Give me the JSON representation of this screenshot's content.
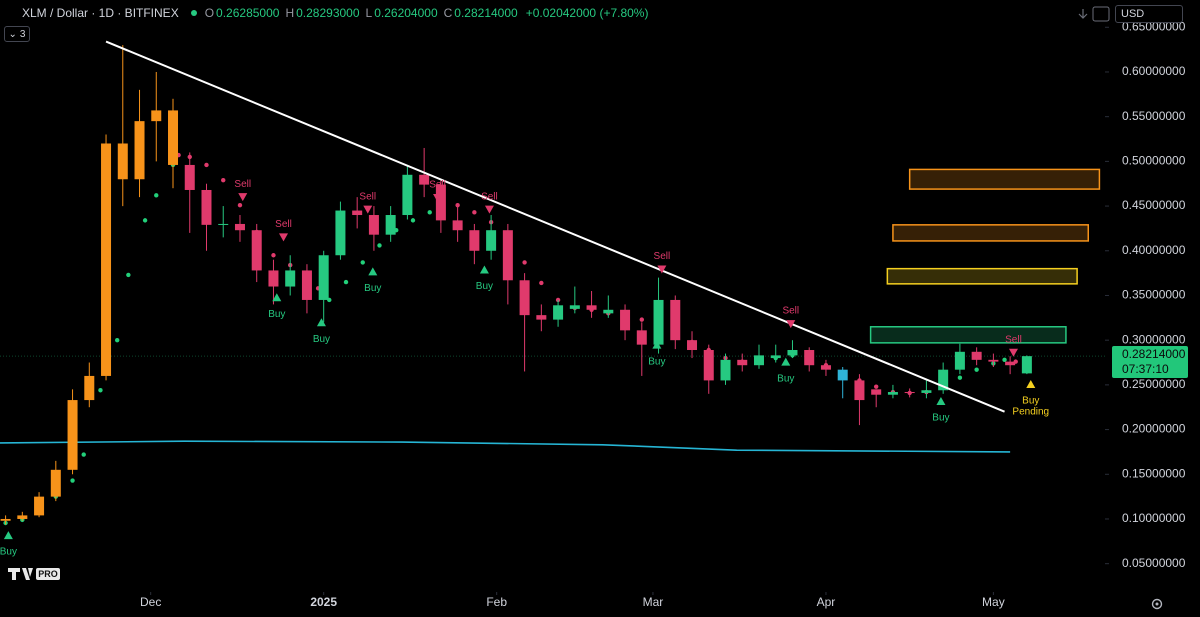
{
  "chart_data": {
    "type": "candlestick",
    "title": "XLM / Dollar · 1D · BITFINEX",
    "ohlc_header": [
      {
        "label": "O",
        "value": "0.26285000"
      },
      {
        "label": "H",
        "value": "0.28293000"
      },
      {
        "label": "L",
        "value": "0.26204000"
      },
      {
        "label": "C",
        "value": "0.28214000"
      }
    ],
    "change": "+0.02042000 (+7.80%)",
    "indicator_count": "3",
    "currency": "USD",
    "last_price_label": "0.28214000",
    "countdown": "07:37:10",
    "logo": "PRO",
    "x": [
      0,
      3,
      6,
      9,
      12,
      15,
      18,
      21,
      24,
      27,
      30,
      33,
      36,
      39,
      42,
      45,
      48,
      51,
      54,
      57,
      60,
      63,
      66,
      69,
      72,
      75,
      78,
      81,
      84,
      87,
      90,
      93,
      96,
      99,
      102,
      105,
      108,
      111,
      114,
      117,
      120,
      123,
      126,
      129,
      132,
      135,
      138,
      141,
      144,
      147,
      150,
      153,
      156,
      159,
      162,
      165,
      168,
      171,
      174,
      177,
      180,
      183
    ],
    "open": [
      0.098,
      0.1,
      0.104,
      0.125,
      0.155,
      0.233,
      0.26,
      0.52,
      0.48,
      0.545,
      0.557,
      0.496,
      0.468,
      0.429,
      0.43,
      0.423,
      0.378,
      0.36,
      0.378,
      0.345,
      0.395,
      0.445,
      0.44,
      0.418,
      0.44,
      0.485,
      0.474,
      0.434,
      0.423,
      0.4,
      0.423,
      0.367,
      0.328,
      0.323,
      0.335,
      0.339,
      0.33,
      0.334,
      0.311,
      0.295,
      0.345,
      0.3,
      0.289,
      0.255,
      0.278,
      0.272,
      0.28,
      0.283,
      0.289,
      0.272,
      0.267,
      0.255,
      0.245,
      0.239,
      0.242,
      0.241,
      0.244,
      0.267,
      0.287,
      0.278,
      0.276,
      0.26285
    ],
    "high": [
      0.104,
      0.108,
      0.13,
      0.165,
      0.245,
      0.275,
      0.53,
      0.63,
      0.58,
      0.6,
      0.57,
      0.51,
      0.475,
      0.45,
      0.44,
      0.43,
      0.39,
      0.395,
      0.385,
      0.4,
      0.455,
      0.46,
      0.45,
      0.45,
      0.495,
      0.515,
      0.48,
      0.45,
      0.43,
      0.44,
      0.43,
      0.375,
      0.34,
      0.345,
      0.36,
      0.355,
      0.35,
      0.34,
      0.32,
      0.37,
      0.35,
      0.31,
      0.295,
      0.285,
      0.285,
      0.295,
      0.295,
      0.3,
      0.292,
      0.278,
      0.27,
      0.262,
      0.245,
      0.25,
      0.246,
      0.255,
      0.275,
      0.296,
      0.292,
      0.285,
      0.282,
      0.28293
    ],
    "low": [
      0.094,
      0.098,
      0.102,
      0.12,
      0.15,
      0.225,
      0.255,
      0.45,
      0.46,
      0.5,
      0.47,
      0.42,
      0.4,
      0.415,
      0.41,
      0.365,
      0.34,
      0.35,
      0.33,
      0.32,
      0.39,
      0.425,
      0.4,
      0.41,
      0.435,
      0.46,
      0.42,
      0.41,
      0.385,
      0.39,
      0.34,
      0.265,
      0.31,
      0.315,
      0.33,
      0.325,
      0.325,
      0.3,
      0.26,
      0.285,
      0.29,
      0.28,
      0.24,
      0.25,
      0.265,
      0.268,
      0.275,
      0.28,
      0.265,
      0.26,
      0.235,
      0.205,
      0.225,
      0.235,
      0.236,
      0.235,
      0.24,
      0.262,
      0.272,
      0.27,
      0.262,
      0.26204
    ],
    "close": [
      0.1,
      0.104,
      0.125,
      0.155,
      0.233,
      0.26,
      0.52,
      0.48,
      0.545,
      0.557,
      0.496,
      0.468,
      0.429,
      0.43,
      0.423,
      0.378,
      0.36,
      0.378,
      0.345,
      0.395,
      0.445,
      0.44,
      0.418,
      0.44,
      0.485,
      0.474,
      0.434,
      0.423,
      0.4,
      0.423,
      0.367,
      0.328,
      0.323,
      0.339,
      0.339,
      0.334,
      0.334,
      0.311,
      0.295,
      0.345,
      0.3,
      0.289,
      0.255,
      0.278,
      0.272,
      0.283,
      0.283,
      0.289,
      0.272,
      0.267,
      0.255,
      0.233,
      0.239,
      0.242,
      0.241,
      0.244,
      0.267,
      0.287,
      0.278,
      0.276,
      0.272,
      0.28214
    ],
    "colors": [
      "#f7931a",
      "#f7931a",
      "#f7931a",
      "#f7931a",
      "#f7931a",
      "#f7931a",
      "#f7931a",
      "#f7931a",
      "#f7931a",
      "#f7931a",
      "#f7931a",
      "#e03a6c",
      "#e03a6c",
      "#26c981",
      "#e03a6c",
      "#e03a6c",
      "#e03a6c",
      "#26c981",
      "#e03a6c",
      "#26c981",
      "#26c981",
      "#e03a6c",
      "#e03a6c",
      "#26c981",
      "#26c981",
      "#e03a6c",
      "#e03a6c",
      "#e03a6c",
      "#e03a6c",
      "#26c981",
      "#e03a6c",
      "#e03a6c",
      "#e03a6c",
      "#26c981",
      "#26c981",
      "#e03a6c",
      "#26c981",
      "#e03a6c",
      "#e03a6c",
      "#26c981",
      "#e03a6c",
      "#e03a6c",
      "#e03a6c",
      "#26c981",
      "#e03a6c",
      "#26c981",
      "#26c981",
      "#26c981",
      "#e03a6c",
      "#e03a6c",
      "#2fb4d8",
      "#e03a6c",
      "#e03a6c",
      "#26c981",
      "#e03a6c",
      "#26c981",
      "#26c981",
      "#26c981",
      "#e03a6c",
      "#e03a6c",
      "#e03a6c",
      "#26c981"
    ],
    "xlim": [
      -1,
      197
    ],
    "xticks": [
      {
        "value": 26,
        "label": "Dec"
      },
      {
        "value": 57,
        "label": "2025"
      },
      {
        "value": 88,
        "label": "Feb"
      },
      {
        "value": 116,
        "label": "Mar"
      },
      {
        "value": 147,
        "label": "Apr"
      },
      {
        "value": 177,
        "label": "May"
      }
    ],
    "ylim": [
      0.02,
      0.655
    ],
    "yticks": [
      {
        "value": 0.05,
        "label": "0.05000000"
      },
      {
        "value": 0.1,
        "label": "0.10000000"
      },
      {
        "value": 0.15,
        "label": "0.15000000"
      },
      {
        "value": 0.2,
        "label": "0.20000000"
      },
      {
        "value": 0.25,
        "label": "0.25000000"
      },
      {
        "value": 0.3,
        "label": "0.30000000"
      },
      {
        "value": 0.35,
        "label": "0.35000000"
      },
      {
        "value": 0.4,
        "label": "0.40000000"
      },
      {
        "value": 0.45,
        "label": "0.45000000"
      },
      {
        "value": 0.5,
        "label": "0.50000000"
      },
      {
        "value": 0.55,
        "label": "0.55000000"
      },
      {
        "value": 0.6,
        "label": "0.60000000"
      },
      {
        "value": 0.65,
        "label": "0.65000000"
      }
    ],
    "trendline": {
      "x": [
        18,
        179
      ],
      "values": [
        0.634,
        0.22
      ],
      "color": "#ffffff"
    },
    "moving_average": {
      "x": [
        -1,
        32,
        71,
        107,
        131,
        180
      ],
      "values": [
        0.185,
        0.187,
        0.186,
        0.183,
        0.177,
        0.175
      ],
      "color": "#26b5d4"
    },
    "dots": [
      {
        "color": "#22d07a",
        "x": [
          0,
          3,
          6,
          9,
          12,
          14,
          17,
          20,
          22,
          25,
          27,
          30,
          58,
          61,
          64,
          67,
          70,
          73,
          76,
          138,
          141,
          168,
          171,
          174,
          177,
          179
        ],
        "values": [
          0.0955,
          0.099,
          0.11,
          0.125,
          0.143,
          0.172,
          0.244,
          0.3,
          0.373,
          0.434,
          0.462,
          0.496,
          0.345,
          0.365,
          0.387,
          0.406,
          0.423,
          0.434,
          0.443,
          0.28,
          0.283,
          0.25,
          0.258,
          0.267,
          0.274,
          0.278
        ]
      },
      {
        "color": "#e03a6c",
        "x": [
          31,
          33,
          36,
          39,
          42,
          45,
          48,
          51,
          54,
          56,
          78,
          81,
          84,
          87,
          90,
          93,
          96,
          99,
          102,
          105,
          108,
          111,
          114,
          117,
          120,
          123,
          126,
          129,
          132,
          135,
          144,
          147,
          150,
          153,
          156,
          159,
          162,
          165,
          181,
          183
        ],
        "values": [
          0.507,
          0.505,
          0.496,
          0.479,
          0.451,
          0.421,
          0.395,
          0.384,
          0.37,
          0.358,
          0.457,
          0.451,
          0.443,
          0.432,
          0.412,
          0.387,
          0.364,
          0.345,
          0.336,
          0.334,
          0.33,
          0.327,
          0.323,
          0.315,
          0.308,
          0.298,
          0.289,
          0.28,
          0.276,
          0.276,
          0.28,
          0.272,
          0.264,
          0.255,
          0.248,
          0.242,
          0.241,
          0.242,
          0.276,
          0.276
        ]
      }
    ],
    "signals": [
      {
        "label": "Buy",
        "x": 0.5,
        "value": 0.082,
        "color": "#26c981"
      },
      {
        "label": "Sell",
        "x": 42.5,
        "value": 0.46,
        "color": "#e03a6c"
      },
      {
        "label": "Buy",
        "x": 48.6,
        "value": 0.348,
        "color": "#26c981"
      },
      {
        "label": "Sell",
        "x": 49.8,
        "value": 0.415,
        "color": "#e03a6c"
      },
      {
        "label": "Buy",
        "x": 56.6,
        "value": 0.32,
        "color": "#26c981"
      },
      {
        "label": "Sell",
        "x": 64.9,
        "value": 0.446,
        "color": "#e03a6c"
      },
      {
        "label": "Buy",
        "x": 65.8,
        "value": 0.377,
        "color": "#26c981"
      },
      {
        "label": "Sell",
        "x": 77.4,
        "value": 0.459,
        "color": "#e03a6c"
      },
      {
        "label": "Buy",
        "x": 85.8,
        "value": 0.379,
        "color": "#26c981"
      },
      {
        "label": "Sell",
        "x": 86.7,
        "value": 0.446,
        "color": "#e03a6c"
      },
      {
        "label": "Buy",
        "x": 116.7,
        "value": 0.295,
        "color": "#26c981"
      },
      {
        "label": "Sell",
        "x": 117.6,
        "value": 0.379,
        "color": "#e03a6c"
      },
      {
        "label": "Buy",
        "x": 139.8,
        "value": 0.276,
        "color": "#26c981"
      },
      {
        "label": "Sell",
        "x": 140.7,
        "value": 0.318,
        "color": "#e03a6c"
      },
      {
        "label": "Buy",
        "x": 167.6,
        "value": 0.232,
        "color": "#26c981"
      },
      {
        "label": "Sell",
        "x": 180.6,
        "value": 0.286,
        "color": "#e03a6c"
      },
      {
        "label": "Buy",
        "sublabel": "Pending",
        "x": 183.7,
        "value": 0.251,
        "color": "#f5d020"
      }
    ],
    "zones": [
      {
        "x": [
          162,
          196
        ],
        "y": [
          0.469,
          0.491
        ],
        "color": "#f7931a"
      },
      {
        "x": [
          159,
          194
        ],
        "y": [
          0.411,
          0.429
        ],
        "color": "#f7931a"
      },
      {
        "x": [
          158,
          192
        ],
        "y": [
          0.363,
          0.38
        ],
        "color": "#f5d020"
      },
      {
        "x": [
          155,
          190
        ],
        "y": [
          0.297,
          0.315
        ],
        "color": "#26c981"
      }
    ]
  }
}
